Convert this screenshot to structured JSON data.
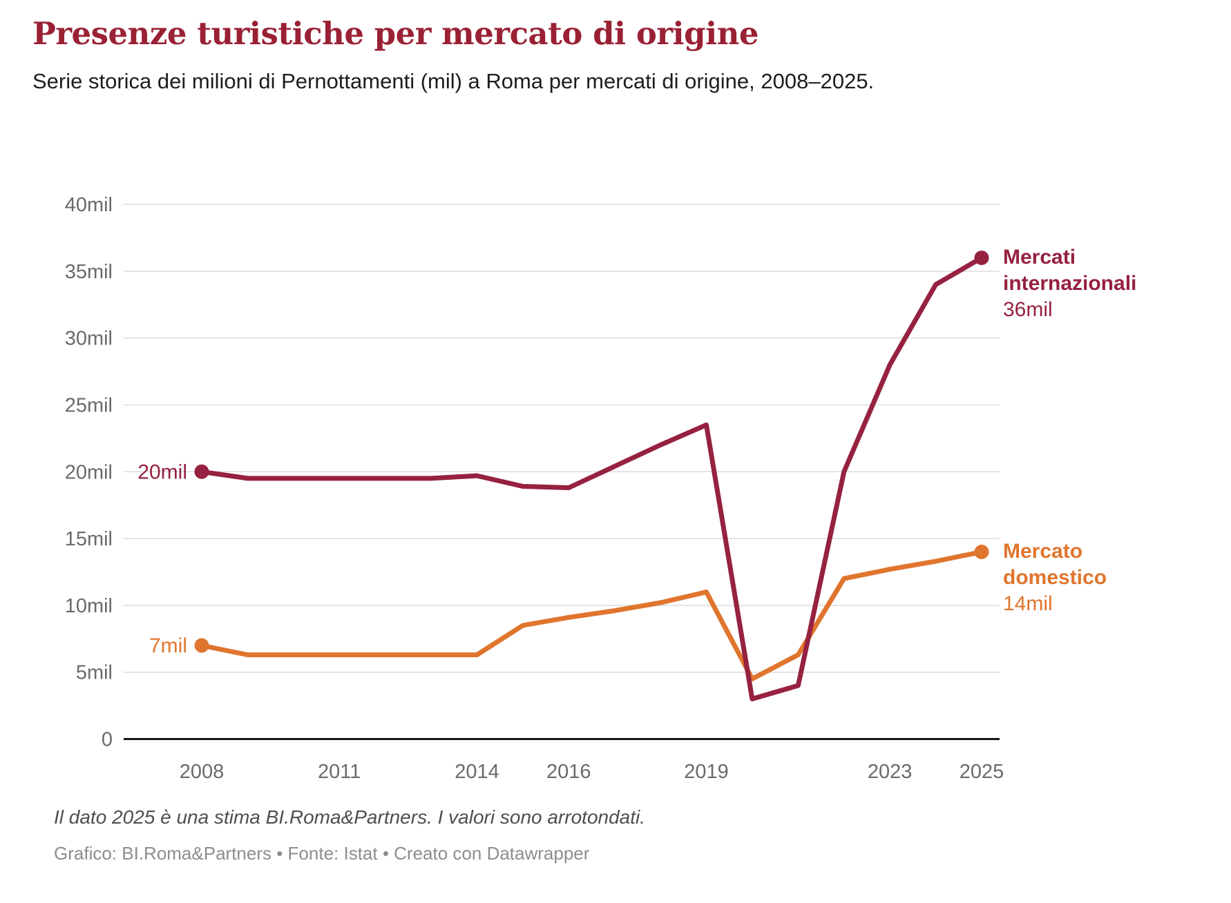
{
  "header": {
    "title": "Presenze turistiche per mercato di origine",
    "subtitle": "Serie storica dei milioni di Pernottamenti (mil) a Roma per mercati di origine, 2008–2025."
  },
  "chart_data": {
    "type": "line",
    "x": [
      2008,
      2009,
      2010,
      2011,
      2012,
      2013,
      2014,
      2015,
      2016,
      2017,
      2018,
      2019,
      2020,
      2021,
      2022,
      2023,
      2024,
      2025
    ],
    "series": [
      {
        "name": "Mercato domestico",
        "label_lines": [
          "Mercato",
          "domestico"
        ],
        "start_value_label": "7mil",
        "end_value_label": "14mil",
        "color": "#E0752E",
        "values": [
          7,
          6.3,
          6.3,
          6.3,
          6.3,
          6.3,
          6.3,
          8.5,
          9.1,
          9.6,
          10.2,
          11,
          4.5,
          6.3,
          12,
          12.7,
          13.3,
          14
        ]
      },
      {
        "name": "Mercati internazionali",
        "label_lines": [
          "Mercati",
          "internazionali"
        ],
        "start_value_label": "20mil",
        "end_value_label": "36mil",
        "color": "#962140",
        "values": [
          20,
          19.5,
          19.5,
          19.5,
          19.5,
          19.5,
          19.7,
          18.9,
          18.8,
          20.4,
          22,
          23.5,
          3,
          4,
          20,
          28,
          34,
          36
        ]
      }
    ],
    "y_ticks": [
      {
        "value": 0,
        "label": "0"
      },
      {
        "value": 5,
        "label": "5mil"
      },
      {
        "value": 10,
        "label": "10mil"
      },
      {
        "value": 15,
        "label": "15mil"
      },
      {
        "value": 20,
        "label": "20mil"
      },
      {
        "value": 25,
        "label": "25mil"
      },
      {
        "value": 30,
        "label": "30mil"
      },
      {
        "value": 35,
        "label": "35mil"
      },
      {
        "value": 40,
        "label": "40mil"
      }
    ],
    "x_ticks": [
      {
        "value": 2008,
        "label": "2008"
      },
      {
        "value": 2011,
        "label": "2011"
      },
      {
        "value": 2014,
        "label": "2014"
      },
      {
        "value": 2016,
        "label": "2016"
      },
      {
        "value": 2019,
        "label": "2019"
      },
      {
        "value": 2023,
        "label": "2023"
      },
      {
        "value": 2025,
        "label": "2025"
      }
    ],
    "ylim": [
      0,
      40
    ],
    "xlim": [
      2008,
      2025
    ],
    "grid": true,
    "legend_position": "right-of-line-ends"
  },
  "footer": {
    "note": "Il dato 2025 è una stima BI.Roma&Partners. I valori sono arrotondati.",
    "credits": "Grafico: BI.Roma&Partners • Fonte: Istat • Creato con Datawrapper"
  },
  "colors": {
    "background": "#FFFFFF",
    "title": "#9A2135",
    "subtitle_text": "#1D1D1D",
    "tick_text": "#6A6A6A",
    "grid_line": "#DBDBDB",
    "axis_line": "#161616",
    "note_text": "#4E4E4E",
    "credits_text": "#8D8D8D"
  }
}
